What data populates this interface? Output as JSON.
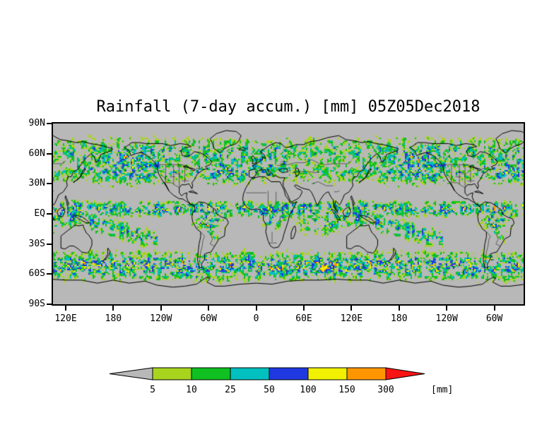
{
  "title": "Rainfall (7-day accum.) [mm] 05Z05Dec2018",
  "axes": {
    "lat_labels": [
      "90N",
      "60N",
      "30N",
      "EQ",
      "30S",
      "60S",
      "90S"
    ],
    "lon_labels": [
      "120E",
      "180",
      "120W",
      "60W",
      "0",
      "60E",
      "120E",
      "180",
      "120W",
      "60W"
    ]
  },
  "colorbar": {
    "tick_labels": [
      "5",
      "10",
      "25",
      "50",
      "100",
      "150",
      "300"
    ],
    "unit_label": "[mm]",
    "segment_colors": [
      "#b8b8b8",
      "#a8d41e",
      "#10c020",
      "#00c0c0",
      "#2038e0",
      "#f0f000",
      "#ff9600",
      "#f81414"
    ]
  },
  "map": {
    "background_color": "#b8b8b8",
    "land_outline_color": "#000000",
    "rain_levels_mm": [
      5,
      10,
      25,
      50,
      100,
      150,
      300
    ]
  },
  "chart_data": {
    "type": "heatmap",
    "title": "Rainfall (7-day accum.) [mm] 05Z05Dec2018",
    "unit": "mm",
    "x_axis_tick_labels": [
      "120E",
      "180",
      "120W",
      "60W",
      "0",
      "60E",
      "120E",
      "180",
      "120W",
      "60W"
    ],
    "y_axis_tick_labels": [
      "90N",
      "60N",
      "30N",
      "EQ",
      "30S",
      "60S",
      "90S"
    ],
    "color_scale": [
      {
        "range": "< 5",
        "color": "#b8b8b8"
      },
      {
        "range": "5-10",
        "color": "#a8d41e"
      },
      {
        "range": "10-25",
        "color": "#10c020"
      },
      {
        "range": "25-50",
        "color": "#00c0c0"
      },
      {
        "range": "50-100",
        "color": "#2038e0"
      },
      {
        "range": "100-150",
        "color": "#f0f000"
      },
      {
        "range": "150-300",
        "color": "#ff9600"
      },
      {
        "range": "> 300",
        "color": "#f81414"
      }
    ],
    "legend_position": "bottom"
  }
}
